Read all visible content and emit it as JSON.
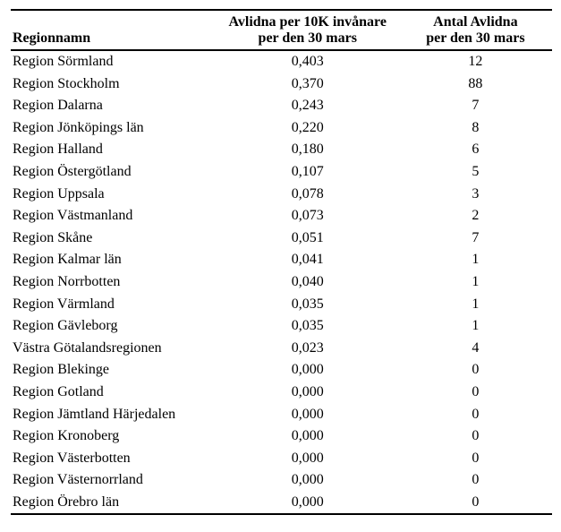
{
  "table": {
    "header": {
      "region": "Regionnamn",
      "rate_line1": "Avlidna per 10K invånare",
      "rate_line2": "per den 30 mars",
      "count_line1": "Antal Avlidna",
      "count_line2": "per den 30 mars"
    },
    "rows": [
      {
        "region": "Region Sörmland",
        "rate": "0,403",
        "count": "12"
      },
      {
        "region": "Region Stockholm",
        "rate": "0,370",
        "count": "88"
      },
      {
        "region": "Region Dalarna",
        "rate": "0,243",
        "count": "7"
      },
      {
        "region": "Region Jönköpings län",
        "rate": "0,220",
        "count": "8"
      },
      {
        "region": "Region Halland",
        "rate": "0,180",
        "count": "6"
      },
      {
        "region": "Region Östergötland",
        "rate": "0,107",
        "count": "5"
      },
      {
        "region": "Region Uppsala",
        "rate": "0,078",
        "count": "3"
      },
      {
        "region": "Region Västmanland",
        "rate": "0,073",
        "count": "2"
      },
      {
        "region": "Region Skåne",
        "rate": "0,051",
        "count": "7"
      },
      {
        "region": "Region Kalmar län",
        "rate": "0,041",
        "count": "1"
      },
      {
        "region": "Region Norrbotten",
        "rate": "0,040",
        "count": "1"
      },
      {
        "region": "Region Värmland",
        "rate": "0,035",
        "count": "1"
      },
      {
        "region": "Region Gävleborg",
        "rate": "0,035",
        "count": "1"
      },
      {
        "region": "Västra Götalandsregionen",
        "rate": "0,023",
        "count": "4"
      },
      {
        "region": "Region Blekinge",
        "rate": "0,000",
        "count": "0"
      },
      {
        "region": "Region Gotland",
        "rate": "0,000",
        "count": "0"
      },
      {
        "region": "Region Jämtland Härjedalen",
        "rate": "0,000",
        "count": "0"
      },
      {
        "region": "Region Kronoberg",
        "rate": "0,000",
        "count": "0"
      },
      {
        "region": "Region Västerbotten",
        "rate": "0,000",
        "count": "0"
      },
      {
        "region": "Region Västernorrland",
        "rate": "0,000",
        "count": "0"
      },
      {
        "region": "Region Örebro län",
        "rate": "0,000",
        "count": "0"
      }
    ]
  },
  "colors": {
    "text": "#000000",
    "border": "#000000",
    "background": "#ffffff"
  }
}
